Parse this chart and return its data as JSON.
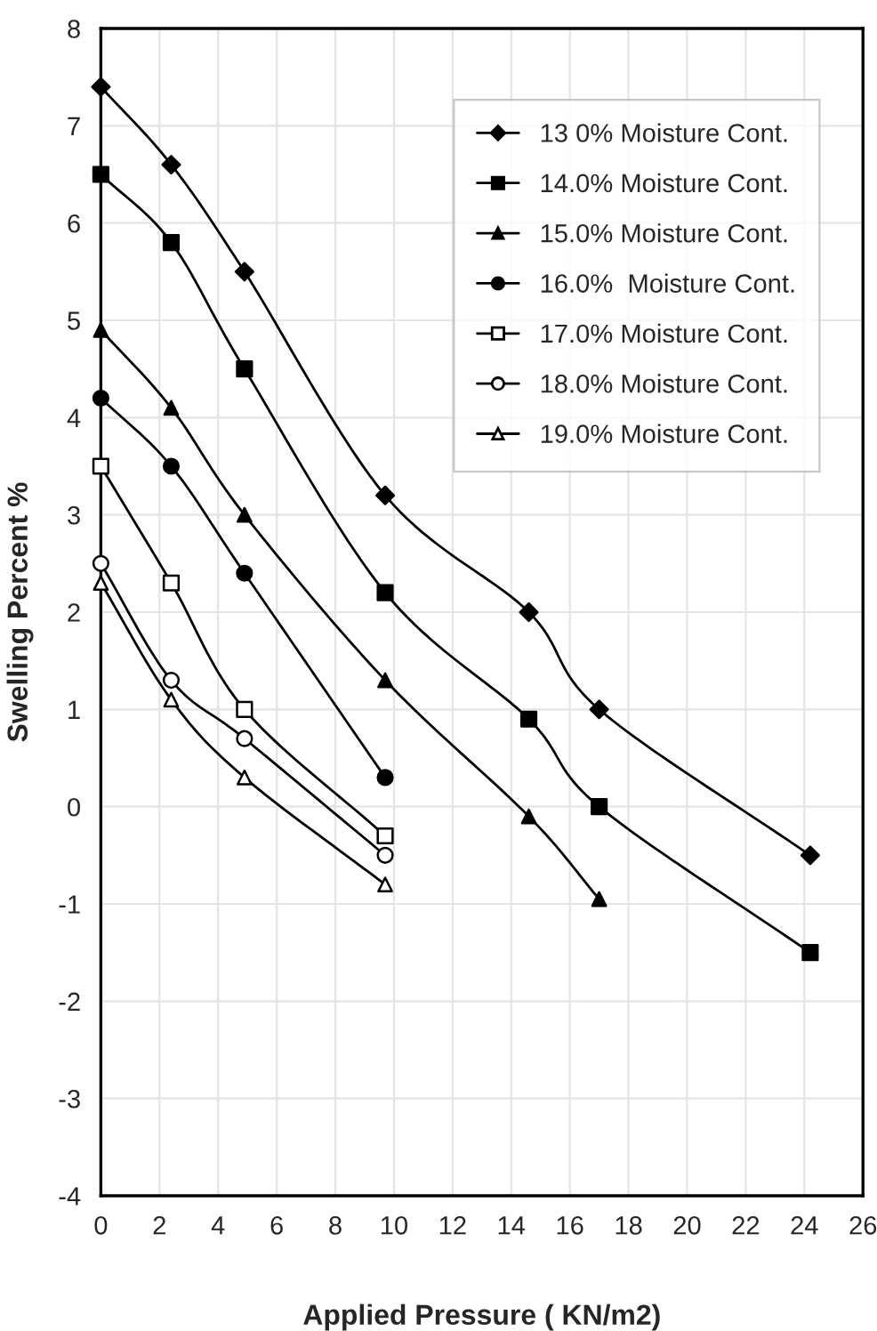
{
  "chart_data": {
    "type": "line",
    "xlabel": "Applied Pressure ( KN/m2)",
    "ylabel": "Swelling Percent %",
    "xlim": [
      0,
      26
    ],
    "xticks": [
      0,
      2,
      4,
      6,
      8,
      10,
      12,
      14,
      16,
      18,
      20,
      22,
      24,
      26
    ],
    "ylim": [
      -4,
      8
    ],
    "yticks": [
      -4,
      -3,
      -2,
      -1,
      0,
      1,
      2,
      3,
      4,
      5,
      6,
      7,
      8
    ],
    "grid": true,
    "legend": "top right",
    "line_style": "solid",
    "series": [
      {
        "name": "13 0% Moisture Cont.",
        "color": "#000000",
        "marker": "diamond",
        "x": [
          0,
          2.4,
          4.9,
          9.7,
          14.6,
          17.0,
          24.2
        ],
        "values": [
          7.4,
          6.6,
          5.5,
          3.2,
          2.0,
          1.0,
          -0.5
        ]
      },
      {
        "name": "14.0% Moisture Cont.",
        "color": "#000000",
        "marker": "square",
        "x": [
          0,
          2.4,
          4.9,
          9.7,
          14.6,
          17.0,
          24.2
        ],
        "values": [
          6.5,
          5.8,
          4.5,
          2.2,
          0.9,
          0.0,
          -1.5
        ]
      },
      {
        "name": "15.0% Moisture Cont.",
        "color": "#000000",
        "marker": "triangle",
        "x": [
          0,
          2.4,
          4.9,
          9.7,
          14.6,
          17.0
        ],
        "values": [
          4.9,
          4.1,
          3.0,
          1.3,
          -0.1,
          -0.95
        ]
      },
      {
        "name": "16.0%  Moisture Cont.",
        "color": "#000000",
        "marker": "circle",
        "x": [
          0,
          2.4,
          4.9,
          9.7
        ],
        "values": [
          4.2,
          3.5,
          2.4,
          0.3
        ]
      },
      {
        "name": "17.0% Moisture Cont.",
        "color": "#000000",
        "marker": "square",
        "colors": [
          "#ffffff",
          "#ffffff",
          "#ffffff",
          "#ffffff"
        ],
        "x": [
          0,
          2.4,
          4.9,
          9.7
        ],
        "values": [
          3.5,
          2.3,
          1.0,
          -0.3
        ]
      },
      {
        "name": "18.0% Moisture Cont.",
        "color": "#000000",
        "marker": "circle",
        "colors": [
          "#ffffff",
          "#ffffff",
          "#ffffff",
          "#ffffff"
        ],
        "x": [
          0,
          2.4,
          4.9,
          9.7
        ],
        "values": [
          2.5,
          1.3,
          0.7,
          -0.5
        ]
      },
      {
        "name": "19.0% Moisture Cont.",
        "color": "#000000",
        "marker": "triangle",
        "colors": [
          "#ffffff",
          "#ffffff",
          "#ffffff",
          "#ffffff"
        ],
        "x": [
          0,
          2.4,
          4.9,
          9.7
        ],
        "values": [
          2.3,
          1.1,
          0.3,
          -0.8
        ]
      }
    ]
  }
}
